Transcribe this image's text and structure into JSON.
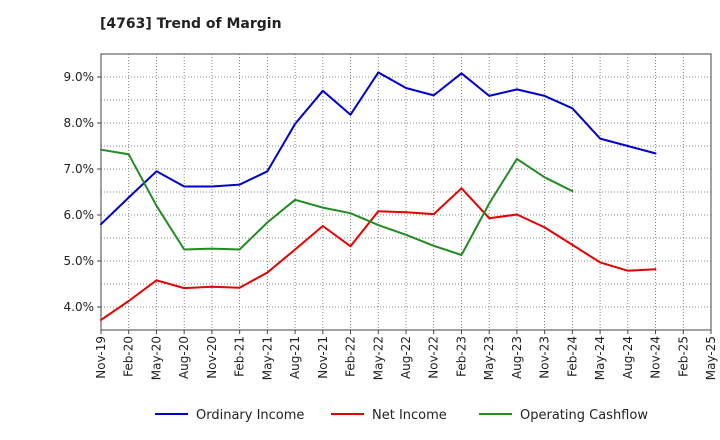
{
  "chart_data": {
    "type": "line",
    "title": "[4763]  Trend of Margin",
    "xlabel": "",
    "ylabel": "",
    "ylim": [
      3.5,
      9.5
    ],
    "yticks": [
      4.0,
      5.0,
      6.0,
      7.0,
      8.0,
      9.0
    ],
    "ytick_labels": [
      "4.0%",
      "5.0%",
      "6.0%",
      "7.0%",
      "8.0%",
      "9.0%"
    ],
    "categories": [
      "Nov-19",
      "Feb-20",
      "May-20",
      "Aug-20",
      "Nov-20",
      "Feb-21",
      "May-21",
      "Aug-21",
      "Nov-21",
      "Feb-22",
      "May-22",
      "Aug-22",
      "Nov-22",
      "Feb-23",
      "May-23",
      "Aug-23",
      "Nov-23",
      "Feb-24",
      "May-24",
      "Aug-24",
      "Nov-24",
      "Feb-25",
      "May-25"
    ],
    "grid": true,
    "legend_position": "bottom",
    "series": [
      {
        "name": "Ordinary Income",
        "color": "#0000cc",
        "values": [
          5.8,
          6.38,
          6.95,
          6.62,
          6.62,
          6.66,
          6.95,
          7.98,
          8.7,
          8.18,
          9.1,
          8.76,
          8.6,
          9.08,
          8.59,
          8.73,
          8.59,
          8.32,
          7.66,
          7.5,
          7.34,
          null,
          null
        ]
      },
      {
        "name": "Net Income",
        "color": "#e60000",
        "values": [
          3.72,
          4.13,
          4.58,
          4.41,
          4.44,
          4.42,
          4.75,
          5.25,
          5.76,
          5.32,
          6.08,
          6.06,
          6.02,
          6.58,
          5.93,
          6.01,
          5.73,
          5.35,
          4.97,
          4.79,
          4.82,
          null,
          null
        ]
      },
      {
        "name": "Operating Cashflow",
        "color": "#228b22",
        "values": [
          7.42,
          7.32,
          6.2,
          5.25,
          5.27,
          5.25,
          5.84,
          6.33,
          6.16,
          6.04,
          5.78,
          5.57,
          5.33,
          5.13,
          6.25,
          7.22,
          6.82,
          6.52,
          null,
          null,
          null,
          null,
          null
        ]
      }
    ]
  }
}
